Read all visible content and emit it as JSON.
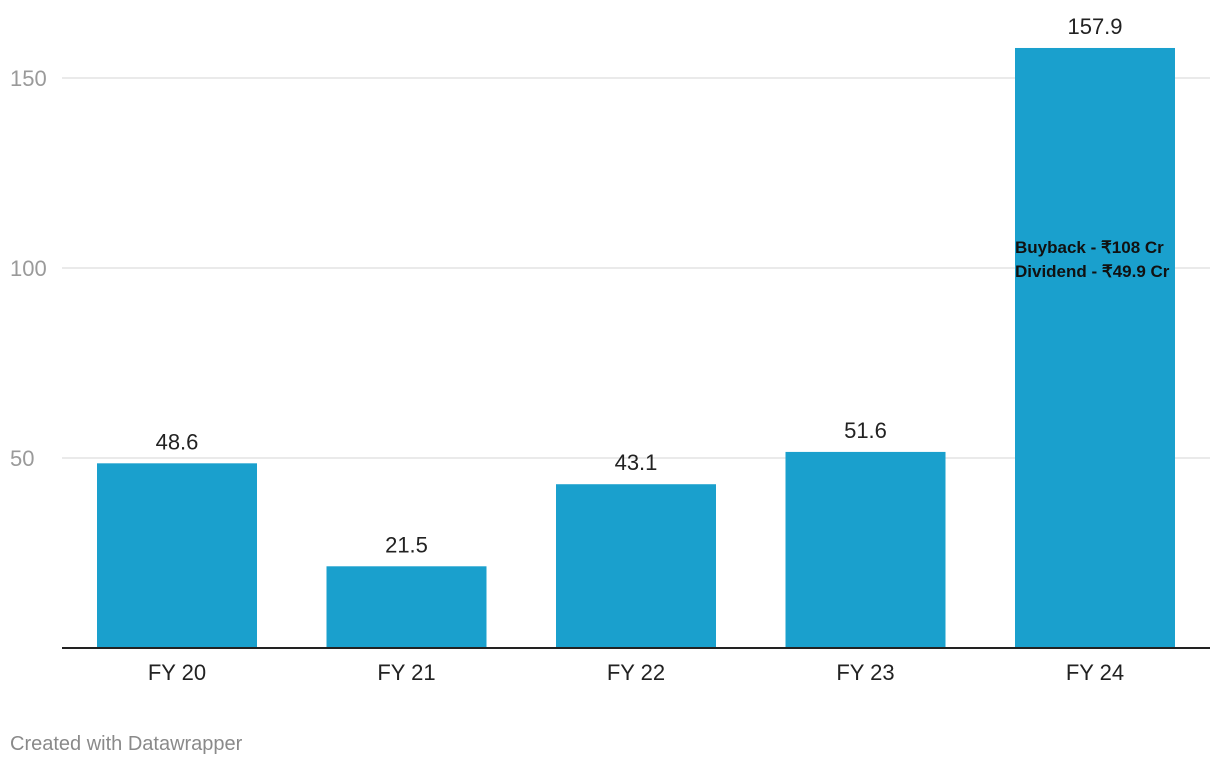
{
  "chart_data": {
    "type": "bar",
    "categories": [
      "FY 20",
      "FY 21",
      "FY 22",
      "FY 23",
      "FY 24"
    ],
    "values": [
      48.6,
      21.5,
      43.1,
      51.6,
      157.9
    ],
    "value_labels": [
      "48.6",
      "21.5",
      "43.1",
      "51.6",
      "157.9"
    ],
    "yticks": [
      50,
      100,
      150
    ],
    "ylim": [
      0,
      157.9
    ],
    "grid": true,
    "bar_color": "#1aa0cd",
    "annotation": {
      "category": "FY 24",
      "lines": [
        "Buyback - ₹108 Cr",
        "Dividend - ₹49.9 Cr"
      ]
    }
  },
  "footer": {
    "credit": "Created with Datawrapper"
  }
}
